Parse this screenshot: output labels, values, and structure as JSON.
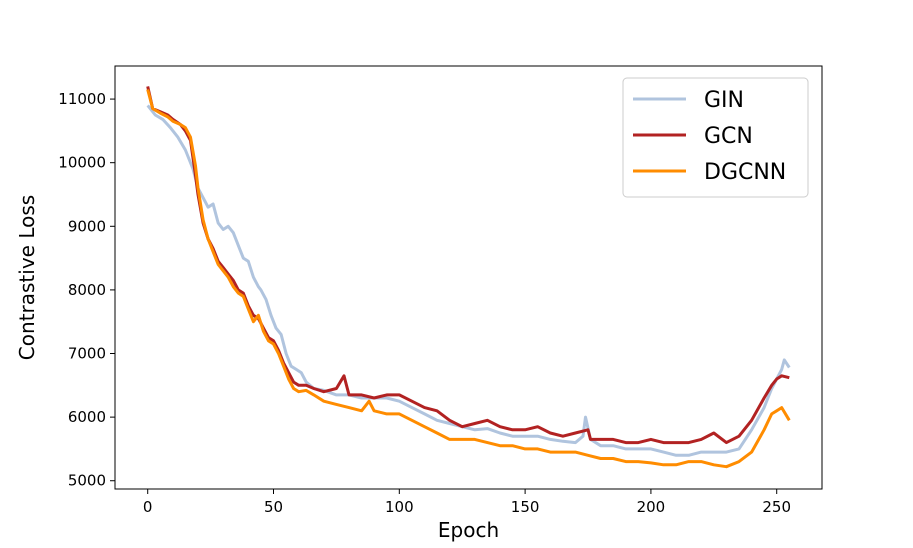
{
  "chart_data": {
    "type": "line",
    "title": "",
    "xlabel": "Epoch",
    "ylabel": "Contrastive Loss",
    "xlim": [
      -13,
      268
    ],
    "ylim": [
      4870,
      11520
    ],
    "xticks": [
      0,
      50,
      100,
      150,
      200,
      250
    ],
    "yticks": [
      5000,
      6000,
      7000,
      8000,
      9000,
      10000,
      11000
    ],
    "grid": false,
    "legend_position": "upper-right",
    "series": [
      {
        "name": "GIN",
        "color": "#b0c4de",
        "points": [
          [
            0,
            10900
          ],
          [
            3,
            10750
          ],
          [
            6,
            10680
          ],
          [
            9,
            10550
          ],
          [
            12,
            10400
          ],
          [
            15,
            10200
          ],
          [
            18,
            9900
          ],
          [
            20,
            9600
          ],
          [
            22,
            9450
          ],
          [
            24,
            9300
          ],
          [
            26,
            9350
          ],
          [
            28,
            9050
          ],
          [
            30,
            8950
          ],
          [
            32,
            9000
          ],
          [
            34,
            8900
          ],
          [
            36,
            8700
          ],
          [
            38,
            8500
          ],
          [
            40,
            8450
          ],
          [
            42,
            8200
          ],
          [
            44,
            8050
          ],
          [
            45,
            8000
          ],
          [
            47,
            7850
          ],
          [
            49,
            7600
          ],
          [
            51,
            7400
          ],
          [
            53,
            7300
          ],
          [
            55,
            7000
          ],
          [
            57,
            6800
          ],
          [
            59,
            6750
          ],
          [
            61,
            6700
          ],
          [
            63,
            6550
          ],
          [
            66,
            6450
          ],
          [
            70,
            6420
          ],
          [
            75,
            6350
          ],
          [
            80,
            6350
          ],
          [
            85,
            6300
          ],
          [
            90,
            6300
          ],
          [
            95,
            6300
          ],
          [
            100,
            6250
          ],
          [
            105,
            6150
          ],
          [
            110,
            6050
          ],
          [
            115,
            5950
          ],
          [
            120,
            5900
          ],
          [
            125,
            5850
          ],
          [
            130,
            5800
          ],
          [
            135,
            5820
          ],
          [
            140,
            5750
          ],
          [
            145,
            5700
          ],
          [
            150,
            5700
          ],
          [
            155,
            5700
          ],
          [
            160,
            5650
          ],
          [
            165,
            5620
          ],
          [
            170,
            5600
          ],
          [
            173,
            5700
          ],
          [
            174,
            6000
          ],
          [
            176,
            5650
          ],
          [
            180,
            5550
          ],
          [
            185,
            5550
          ],
          [
            190,
            5500
          ],
          [
            195,
            5500
          ],
          [
            200,
            5500
          ],
          [
            205,
            5450
          ],
          [
            210,
            5400
          ],
          [
            215,
            5400
          ],
          [
            220,
            5450
          ],
          [
            225,
            5450
          ],
          [
            230,
            5450
          ],
          [
            235,
            5500
          ],
          [
            240,
            5800
          ],
          [
            245,
            6150
          ],
          [
            248,
            6450
          ],
          [
            250,
            6600
          ],
          [
            252,
            6750
          ],
          [
            253,
            6900
          ],
          [
            255,
            6780
          ]
        ]
      },
      {
        "name": "GCN",
        "color": "#b22222",
        "points": [
          [
            0,
            11200
          ],
          [
            2,
            10850
          ],
          [
            5,
            10800
          ],
          [
            8,
            10750
          ],
          [
            10,
            10680
          ],
          [
            13,
            10600
          ],
          [
            15,
            10500
          ],
          [
            17,
            10350
          ],
          [
            19,
            9800
          ],
          [
            20,
            9500
          ],
          [
            22,
            9050
          ],
          [
            24,
            8800
          ],
          [
            26,
            8650
          ],
          [
            28,
            8450
          ],
          [
            30,
            8350
          ],
          [
            32,
            8250
          ],
          [
            34,
            8150
          ],
          [
            36,
            8000
          ],
          [
            38,
            7950
          ],
          [
            40,
            7750
          ],
          [
            42,
            7600
          ],
          [
            44,
            7550
          ],
          [
            46,
            7400
          ],
          [
            48,
            7250
          ],
          [
            50,
            7200
          ],
          [
            52,
            7050
          ],
          [
            54,
            6850
          ],
          [
            56,
            6700
          ],
          [
            58,
            6550
          ],
          [
            60,
            6500
          ],
          [
            63,
            6500
          ],
          [
            66,
            6450
          ],
          [
            70,
            6400
          ],
          [
            75,
            6450
          ],
          [
            78,
            6650
          ],
          [
            80,
            6350
          ],
          [
            85,
            6350
          ],
          [
            90,
            6300
          ],
          [
            95,
            6350
          ],
          [
            100,
            6350
          ],
          [
            105,
            6250
          ],
          [
            110,
            6150
          ],
          [
            115,
            6100
          ],
          [
            120,
            5950
          ],
          [
            125,
            5850
          ],
          [
            130,
            5900
          ],
          [
            135,
            5950
          ],
          [
            140,
            5850
          ],
          [
            145,
            5800
          ],
          [
            150,
            5800
          ],
          [
            155,
            5850
          ],
          [
            160,
            5750
          ],
          [
            165,
            5700
          ],
          [
            170,
            5750
          ],
          [
            175,
            5800
          ],
          [
            176,
            5650
          ],
          [
            180,
            5650
          ],
          [
            185,
            5650
          ],
          [
            190,
            5600
          ],
          [
            195,
            5600
          ],
          [
            200,
            5650
          ],
          [
            205,
            5600
          ],
          [
            210,
            5600
          ],
          [
            215,
            5600
          ],
          [
            220,
            5650
          ],
          [
            225,
            5750
          ],
          [
            230,
            5600
          ],
          [
            235,
            5700
          ],
          [
            240,
            5950
          ],
          [
            245,
            6300
          ],
          [
            248,
            6500
          ],
          [
            250,
            6600
          ],
          [
            252,
            6650
          ],
          [
            255,
            6620
          ]
        ]
      },
      {
        "name": "DGCNN",
        "color": "#ff8c00",
        "points": [
          [
            0,
            11150
          ],
          [
            2,
            10850
          ],
          [
            5,
            10780
          ],
          [
            8,
            10720
          ],
          [
            10,
            10650
          ],
          [
            13,
            10600
          ],
          [
            15,
            10550
          ],
          [
            17,
            10400
          ],
          [
            19,
            9950
          ],
          [
            20,
            9600
          ],
          [
            22,
            9100
          ],
          [
            24,
            8800
          ],
          [
            26,
            8600
          ],
          [
            28,
            8400
          ],
          [
            30,
            8300
          ],
          [
            32,
            8200
          ],
          [
            34,
            8050
          ],
          [
            36,
            7950
          ],
          [
            38,
            7900
          ],
          [
            40,
            7700
          ],
          [
            42,
            7500
          ],
          [
            44,
            7600
          ],
          [
            46,
            7350
          ],
          [
            48,
            7200
          ],
          [
            50,
            7150
          ],
          [
            52,
            7000
          ],
          [
            54,
            6800
          ],
          [
            56,
            6600
          ],
          [
            58,
            6450
          ],
          [
            60,
            6400
          ],
          [
            63,
            6420
          ],
          [
            66,
            6350
          ],
          [
            70,
            6250
          ],
          [
            75,
            6200
          ],
          [
            80,
            6150
          ],
          [
            85,
            6100
          ],
          [
            88,
            6250
          ],
          [
            90,
            6100
          ],
          [
            95,
            6050
          ],
          [
            100,
            6050
          ],
          [
            105,
            5950
          ],
          [
            110,
            5850
          ],
          [
            115,
            5750
          ],
          [
            120,
            5650
          ],
          [
            125,
            5650
          ],
          [
            130,
            5650
          ],
          [
            135,
            5600
          ],
          [
            140,
            5550
          ],
          [
            145,
            5550
          ],
          [
            150,
            5500
          ],
          [
            155,
            5500
          ],
          [
            160,
            5450
          ],
          [
            165,
            5450
          ],
          [
            170,
            5450
          ],
          [
            175,
            5400
          ],
          [
            180,
            5350
          ],
          [
            185,
            5350
          ],
          [
            190,
            5300
          ],
          [
            195,
            5300
          ],
          [
            200,
            5280
          ],
          [
            205,
            5250
          ],
          [
            210,
            5250
          ],
          [
            215,
            5300
          ],
          [
            220,
            5300
          ],
          [
            225,
            5250
          ],
          [
            230,
            5220
          ],
          [
            235,
            5300
          ],
          [
            240,
            5450
          ],
          [
            245,
            5800
          ],
          [
            248,
            6050
          ],
          [
            250,
            6100
          ],
          [
            252,
            6150
          ],
          [
            255,
            5950
          ]
        ]
      }
    ]
  }
}
